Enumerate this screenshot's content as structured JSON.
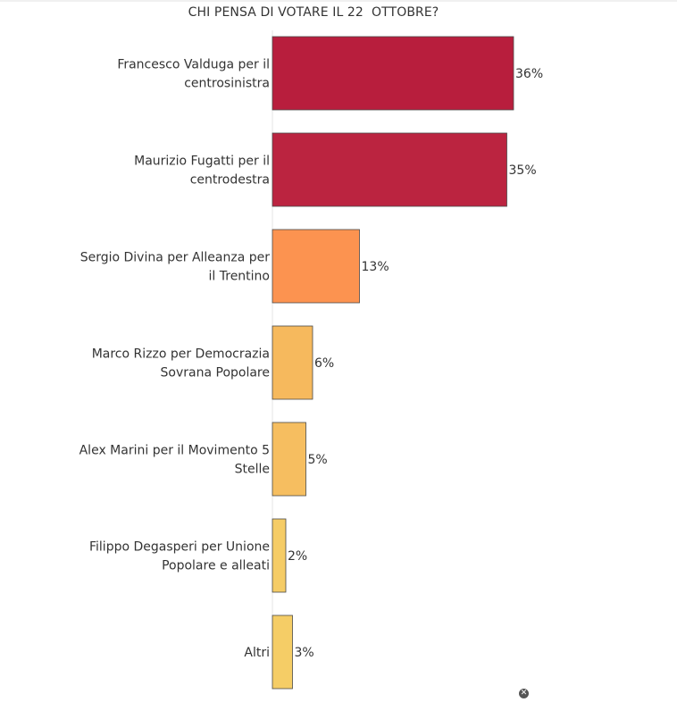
{
  "chart_data": {
    "type": "bar",
    "orientation": "horizontal",
    "title": "CHI PENSA DI VOTARE IL 22  OTTOBRE?",
    "categories": [
      [
        "Francesco Valduga per il",
        "centrosinistra"
      ],
      [
        "Maurizio Fugatti per il",
        "centrodestra"
      ],
      [
        "Sergio Divina per Alleanza per",
        "il Trentino"
      ],
      [
        "Marco Rizzo per Democrazia",
        "Sovrana Popolare"
      ],
      [
        "Alex Marini per il Movimento 5",
        "Stelle"
      ],
      [
        "Filippo Degasperi per Unione",
        "Popolare e alleati"
      ],
      [
        "Altri"
      ]
    ],
    "values": [
      36,
      35,
      13,
      6,
      5,
      2,
      3
    ],
    "value_labels": [
      "36%",
      "35%",
      "13%",
      "6%",
      "5%",
      "2%",
      "3%"
    ],
    "colors": [
      "#b81e3d",
      "#bb2440",
      "#fc9350",
      "#f6b95d",
      "#f6be60",
      "#f5cc66",
      "#f5cd66"
    ],
    "xlim": [
      0,
      40
    ],
    "grid": false,
    "legend": "none"
  },
  "icons": {
    "close": "close-icon"
  }
}
